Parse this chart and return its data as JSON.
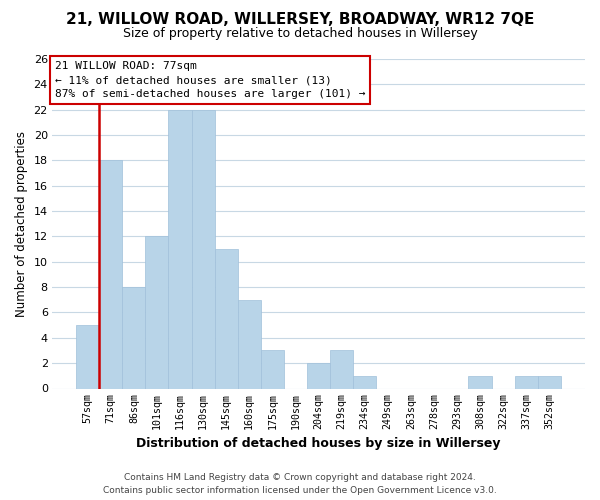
{
  "title": "21, WILLOW ROAD, WILLERSEY, BROADWAY, WR12 7QE",
  "subtitle": "Size of property relative to detached houses in Willersey",
  "bar_labels": [
    "57sqm",
    "71sqm",
    "86sqm",
    "101sqm",
    "116sqm",
    "130sqm",
    "145sqm",
    "160sqm",
    "175sqm",
    "190sqm",
    "204sqm",
    "219sqm",
    "234sqm",
    "249sqm",
    "263sqm",
    "278sqm",
    "293sqm",
    "308sqm",
    "322sqm",
    "337sqm",
    "352sqm"
  ],
  "bar_values": [
    5,
    18,
    8,
    12,
    22,
    22,
    11,
    7,
    3,
    0,
    2,
    3,
    1,
    0,
    0,
    0,
    0,
    1,
    0,
    1,
    1
  ],
  "bar_color": "#b8d4e8",
  "bar_edge_color": "#a0c0da",
  "property_line_label": "21 WILLOW ROAD: 77sqm",
  "annotation_line1": "← 11% of detached houses are smaller (13)",
  "annotation_line2": "87% of semi-detached houses are larger (101) →",
  "xlabel": "Distribution of detached houses by size in Willersey",
  "ylabel": "Number of detached properties",
  "ylim": [
    0,
    26
  ],
  "yticks": [
    0,
    2,
    4,
    6,
    8,
    10,
    12,
    14,
    16,
    18,
    20,
    22,
    24,
    26
  ],
  "footnote1": "Contains HM Land Registry data © Crown copyright and database right 2024.",
  "footnote2": "Contains public sector information licensed under the Open Government Licence v3.0.",
  "background_color": "#ffffff",
  "grid_color": "#c8d8e4",
  "annotation_box_color": "#ffffff",
  "annotation_box_edge": "#cc0000",
  "property_line_color": "#cc0000",
  "title_fontsize": 11,
  "subtitle_fontsize": 9
}
